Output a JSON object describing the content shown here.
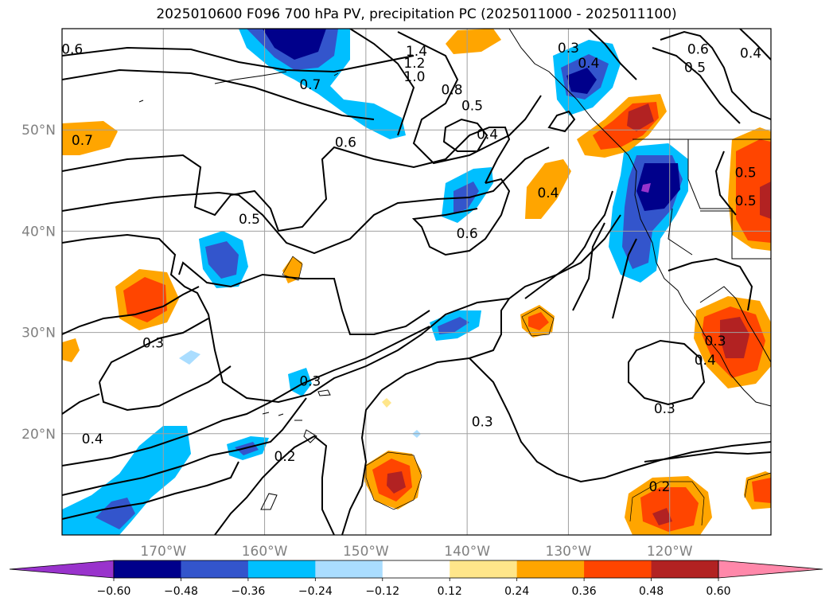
{
  "title": "2025010600 F096 700 hPa PV, precipitation PC (2025011000 - 2025011100)",
  "map": {
    "lon_range": [
      -180,
      -110
    ],
    "lat_range": [
      10,
      60
    ],
    "lon_ticks": [
      {
        "lon": -170,
        "label": "170°W"
      },
      {
        "lon": -160,
        "label": "160°W"
      },
      {
        "lon": -150,
        "label": "150°W"
      },
      {
        "lon": -140,
        "label": "140°W"
      },
      {
        "lon": -130,
        "label": "130°W"
      },
      {
        "lon": -120,
        "label": "120°W"
      }
    ],
    "lat_ticks": [
      {
        "lat": 50,
        "label": "50°N"
      },
      {
        "lat": 40,
        "label": "40°N"
      },
      {
        "lat": 30,
        "label": "30°N"
      },
      {
        "lat": 20,
        "label": "20°N"
      }
    ],
    "grid": true,
    "contour_labels": [
      {
        "text": "0.6",
        "lon": -179,
        "lat": 58
      },
      {
        "text": "1.4",
        "lon": -145,
        "lat": 57.8
      },
      {
        "text": "1.2",
        "lon": -145.2,
        "lat": 56.6
      },
      {
        "text": "1.0",
        "lon": -145.2,
        "lat": 55.3
      },
      {
        "text": "0.7",
        "lon": -155.5,
        "lat": 54.5
      },
      {
        "text": "0.8",
        "lon": -141.5,
        "lat": 54
      },
      {
        "text": "0.5",
        "lon": -139.5,
        "lat": 52.4
      },
      {
        "text": "0.6",
        "lon": -152,
        "lat": 48.8
      },
      {
        "text": "0.4",
        "lon": -138,
        "lat": 49.6
      },
      {
        "text": "0.5",
        "lon": -161.5,
        "lat": 41.2
      },
      {
        "text": "0.6",
        "lon": -140,
        "lat": 39.8
      },
      {
        "text": "0.4",
        "lon": -132,
        "lat": 43.8
      },
      {
        "text": "0.7",
        "lon": -178,
        "lat": 49
      },
      {
        "text": "0.3",
        "lon": -130,
        "lat": 58.1
      },
      {
        "text": "0.4",
        "lon": -128,
        "lat": 56.6
      },
      {
        "text": "0.6",
        "lon": -117.2,
        "lat": 58
      },
      {
        "text": "0.5",
        "lon": -117.5,
        "lat": 56.2
      },
      {
        "text": "0.4",
        "lon": -112,
        "lat": 57.6
      },
      {
        "text": "0.5",
        "lon": -112.5,
        "lat": 45.8
      },
      {
        "text": "0.5",
        "lon": -112.5,
        "lat": 43
      },
      {
        "text": "0.3",
        "lon": -171,
        "lat": 29
      },
      {
        "text": "0.3",
        "lon": -155.5,
        "lat": 25.2
      },
      {
        "text": "0.4",
        "lon": -177,
        "lat": 19.5
      },
      {
        "text": "0.2",
        "lon": -158,
        "lat": 17.8
      },
      {
        "text": "0.3",
        "lon": -138.5,
        "lat": 21.2
      },
      {
        "text": "0.3",
        "lon": -120.5,
        "lat": 22.5
      },
      {
        "text": "0.2",
        "lon": -121,
        "lat": 14.8
      },
      {
        "text": "0.3",
        "lon": -115.5,
        "lat": 29.2
      },
      {
        "text": "0.4",
        "lon": -116.5,
        "lat": 27.3
      }
    ]
  },
  "colorbar": {
    "ticks": [
      "−0.60",
      "−0.48",
      "−0.36",
      "−0.24",
      "−0.12",
      "0.12",
      "0.24",
      "0.36",
      "0.48",
      "0.60"
    ],
    "colors": [
      "#9933cc",
      "#00008b",
      "#3355cc",
      "#00bfff",
      "#aaddff",
      "#ffffff",
      "#ffe68a",
      "#ffa500",
      "#ff4500",
      "#b22222",
      "#ff88aa"
    ]
  }
}
